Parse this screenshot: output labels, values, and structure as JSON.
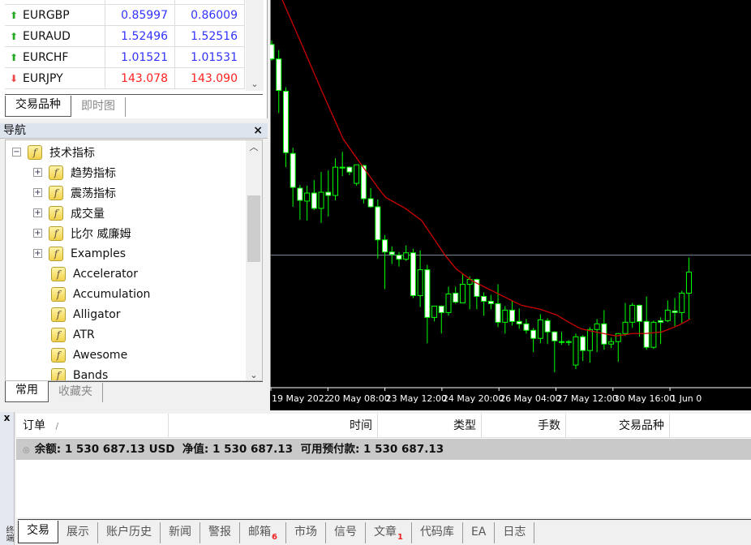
{
  "market_watch": {
    "rows": [
      {
        "symbol": "EURGBP",
        "bid": "0.85997",
        "ask": "0.86009",
        "direction": "up"
      },
      {
        "symbol": "EURAUD",
        "bid": "1.52496",
        "ask": "1.52516",
        "direction": "up"
      },
      {
        "symbol": "EURCHF",
        "bid": "1.01521",
        "ask": "1.01531",
        "direction": "up"
      },
      {
        "symbol": "EURJPY",
        "bid": "143.078",
        "ask": "143.090",
        "direction": "down"
      }
    ],
    "tabs": [
      "交易品种",
      "即时图"
    ],
    "colors": {
      "up": "#3333ff",
      "down": "#ff2020"
    }
  },
  "navigator": {
    "title": "导航",
    "close": "×",
    "root": "技术指标",
    "groups": [
      "趋势指标",
      "震荡指标",
      "成交量",
      "比尔 威廉姆",
      "Examples"
    ],
    "items": [
      "Accelerator",
      "Accumulation",
      "Alligator",
      "ATR",
      "Awesome",
      "Bands"
    ],
    "tabs": [
      "常用",
      "收藏夹"
    ]
  },
  "chart": {
    "chart_data": {
      "type": "candlestick",
      "colors": {
        "background": "#000000",
        "candle": "#00ff00",
        "bear_body": "#ffffff",
        "bull_body": "#000000",
        "ma": "#cc0000",
        "hline": "#8090a0"
      },
      "x_tick_labels": [
        "19 May 2022",
        "20 May 08:00",
        "23 May 12:00",
        "24 May 20:00",
        "26 May 04:00",
        "27 May 12:00",
        "30 May 16:00",
        "1 Jun 0"
      ],
      "candles_ohlc": [
        [
          425,
          430,
          405,
          407
        ],
        [
          407,
          418,
          340,
          368
        ],
        [
          367,
          372,
          273,
          291
        ],
        [
          290,
          297,
          224,
          248
        ],
        [
          247,
          251,
          208,
          232
        ],
        [
          231,
          250,
          207,
          241
        ],
        [
          241,
          257,
          220,
          222
        ],
        [
          222,
          267,
          204,
          242
        ],
        [
          242,
          269,
          212,
          238
        ],
        [
          238,
          284,
          232,
          273
        ],
        [
          273,
          292,
          262,
          272
        ],
        [
          273,
          274,
          263,
          267
        ],
        [
          253,
          276,
          250,
          276
        ],
        [
          275,
          276,
          228,
          234
        ],
        [
          234,
          247,
          223,
          224
        ],
        [
          224,
          233,
          160,
          183
        ],
        [
          183,
          189,
          122,
          168
        ],
        [
          168,
          175,
          153,
          165
        ],
        [
          164,
          168,
          150,
          159
        ],
        [
          159,
          176,
          157,
          167
        ],
        [
          167,
          172,
          111,
          114
        ],
        [
          114,
          170,
          100,
          146
        ],
        [
          146,
          152,
          55,
          87
        ],
        [
          87,
          101,
          82,
          101
        ],
        [
          101,
          102,
          67,
          93
        ],
        [
          93,
          125,
          89,
          116
        ],
        [
          117,
          125,
          104,
          106
        ],
        [
          105,
          141,
          105,
          128
        ],
        [
          128,
          138,
          97,
          134
        ],
        [
          134,
          135,
          97,
          113
        ],
        [
          113,
          118,
          89,
          107
        ],
        [
          107,
          115,
          97,
          104
        ],
        [
          104,
          128,
          75,
          81
        ],
        [
          81,
          101,
          67,
          96
        ],
        [
          96,
          108,
          77,
          82
        ],
        [
          82,
          98,
          73,
          79
        ],
        [
          79,
          85,
          67,
          71
        ],
        [
          71,
          74,
          44,
          61
        ],
        [
          61,
          91,
          55,
          84
        ],
        [
          83,
          86,
          54,
          69
        ],
        [
          69,
          70,
          19,
          58
        ],
        [
          57,
          69,
          53,
          56
        ],
        [
          57,
          59,
          52,
          56
        ],
        [
          28,
          67,
          23,
          63
        ],
        [
          63,
          65,
          33,
          46
        ],
        [
          46,
          75,
          31,
          72
        ],
        [
          72,
          85,
          44,
          79
        ],
        [
          79,
          96,
          47,
          54
        ],
        [
          54,
          62,
          49,
          57
        ],
        [
          57,
          67,
          32,
          67
        ],
        [
          67,
          105,
          64,
          81
        ],
        [
          81,
          105,
          74,
          102
        ],
        [
          102,
          103,
          63,
          82
        ],
        [
          82,
          113,
          47,
          50
        ],
        [
          50,
          83,
          48,
          81
        ],
        [
          83,
          87,
          54,
          81
        ],
        [
          83,
          108,
          81,
          96
        ],
        [
          95,
          111,
          76,
          93
        ],
        [
          93,
          120,
          80,
          117
        ],
        [
          117,
          161,
          85,
          143
        ]
      ],
      "moving_average": [
        [
          1.5,
          480
        ],
        [
          4,
          430
        ],
        [
          7.1,
          367
        ],
        [
          10.1,
          308
        ],
        [
          12.6,
          277
        ],
        [
          15.5,
          242
        ],
        [
          16.2,
          235
        ],
        [
          18.9,
          222
        ],
        [
          21.2,
          207
        ],
        [
          24.6,
          163
        ],
        [
          26.1,
          147
        ],
        [
          28.4,
          132
        ],
        [
          32.3,
          115
        ],
        [
          35.3,
          102
        ],
        [
          38,
          97
        ],
        [
          40.3,
          90
        ],
        [
          42.2,
          80
        ],
        [
          43.7,
          73
        ],
        [
          45.2,
          70
        ],
        [
          48.7,
          64
        ],
        [
          51,
          67
        ],
        [
          52.9,
          67
        ],
        [
          55.2,
          69
        ],
        [
          57.5,
          77
        ],
        [
          59.2,
          85
        ]
      ],
      "horizontal_line": 164,
      "y_range": [
        0,
        480
      ]
    }
  },
  "terminal": {
    "close": "x",
    "side_label": "终端",
    "columns": [
      "订单",
      "时间",
      "类型",
      "手数",
      "交易品种"
    ],
    "sort_mark": "/",
    "balance_line": "余额: 1 530 687.13 USD  净值: 1 530 687.13  可用预付款: 1 530 687.13",
    "tabs": [
      {
        "label": "交易"
      },
      {
        "label": "展示"
      },
      {
        "label": "账户历史"
      },
      {
        "label": "新闻"
      },
      {
        "label": "警报"
      },
      {
        "label": "邮箱",
        "badge": "6"
      },
      {
        "label": "市场"
      },
      {
        "label": "信号"
      },
      {
        "label": "文章",
        "badge": "1"
      },
      {
        "label": "代码库"
      },
      {
        "label": "EA"
      },
      {
        "label": "日志"
      }
    ]
  }
}
